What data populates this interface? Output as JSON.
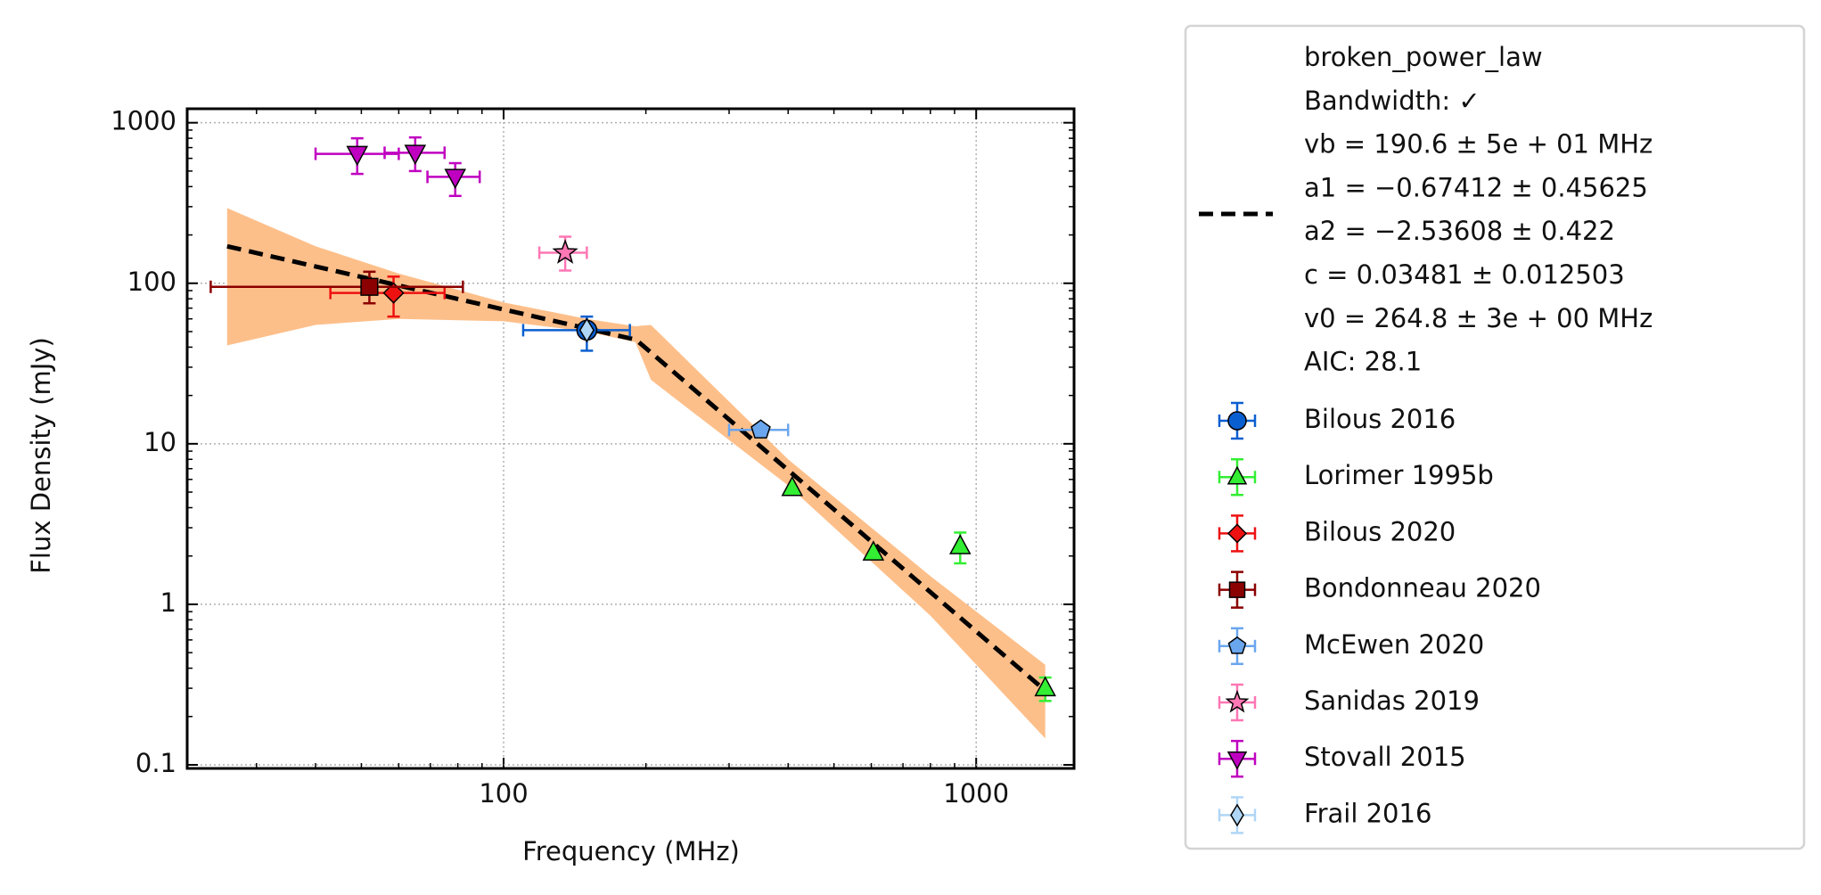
{
  "chart_data": {
    "type": "scatter",
    "xlabel": "Frequency (MHz)",
    "ylabel": "Flux Density (mJy)",
    "xscale": "log",
    "yscale": "log",
    "xlim": [
      21.4,
      1611
    ],
    "ylim": [
      0.095,
      1222
    ],
    "xticks": [
      100,
      1000
    ],
    "yticks": [
      0.1,
      1,
      10,
      100,
      1000
    ],
    "xminorticks": [
      30,
      40,
      50,
      60,
      70,
      80,
      90,
      200,
      300,
      400,
      500,
      600,
      700,
      800,
      900
    ],
    "yminorticks": [
      0.2,
      0.3,
      0.4,
      0.5,
      0.6,
      0.7,
      0.8,
      0.9,
      2,
      3,
      4,
      5,
      6,
      7,
      8,
      9,
      20,
      30,
      40,
      50,
      60,
      70,
      80,
      90,
      200,
      300,
      400,
      500,
      600,
      700,
      800,
      900
    ],
    "grid": true,
    "legend": "outside right",
    "fit": {
      "name": "broken_power_law",
      "legend_lines": [
        "broken_power_law",
        "Bandwidth: ✓",
        "vb = 190.6 ± 5e + 01 MHz",
        "a1 = −0.67412 ± 0.45625",
        "a2 = −2.53608 ± 0.422",
        "c = 0.03481 ± 0.012503",
        "v0 = 264.8 ± 3e + 00 MHz",
        "AIC: 28.1"
      ],
      "color": "#000000",
      "x": [
        26,
        190.6,
        1400
      ],
      "values": [
        170,
        44.5,
        0.29
      ]
    },
    "band": {
      "color": "#fdbf8a",
      "x": [
        26,
        40,
        60,
        100,
        150,
        190,
        205,
        400,
        800,
        1400
      ],
      "upper": [
        294,
        170,
        115,
        76,
        60,
        54,
        55,
        8,
        1.5,
        0.42
      ],
      "lower": [
        41,
        55,
        60,
        58,
        50,
        43,
        25,
        5.5,
        0.85,
        0.146
      ]
    },
    "series": [
      {
        "name": "Bilous 2016",
        "color": "#0a5fd0",
        "marker": "o",
        "x": [
          150
        ],
        "values": [
          51
        ],
        "x_lower": [
          110
        ],
        "x_upper": [
          185
        ],
        "y_lower": [
          38
        ],
        "y_upper": [
          62
        ]
      },
      {
        "name": "Lorimer 1995b",
        "color": "#33ee33",
        "marker": "^",
        "x": [
          408,
          606,
          925,
          1400
        ],
        "values": [
          5.3,
          2.1,
          2.3,
          0.3
        ],
        "x_lower": [
          null,
          null,
          null,
          null
        ],
        "x_upper": [
          null,
          null,
          null,
          null
        ],
        "y_lower": [
          null,
          null,
          1.8,
          0.25
        ],
        "y_upper": [
          null,
          null,
          2.8,
          0.35
        ]
      },
      {
        "name": "Bilous 2020",
        "color": "#ee1111",
        "marker": "D",
        "x": [
          58.5
        ],
        "values": [
          87
        ],
        "x_lower": [
          43
        ],
        "x_upper": [
          75
        ],
        "y_lower": [
          62
        ],
        "y_upper": [
          110
        ]
      },
      {
        "name": "Bondonneau 2020",
        "color": "#8b0000",
        "marker": "s",
        "x": [
          52
        ],
        "values": [
          95
        ],
        "x_lower": [
          24
        ],
        "x_upper": [
          82
        ],
        "y_lower": [
          75
        ],
        "y_upper": [
          118
        ]
      },
      {
        "name": "McEwen 2020",
        "color": "#6aa6ee",
        "marker": "p",
        "x": [
          350
        ],
        "values": [
          12.2
        ],
        "x_lower": [
          300
        ],
        "x_upper": [
          400
        ],
        "y_lower": [
          null
        ],
        "y_upper": [
          null
        ]
      },
      {
        "name": "Sanidas 2019",
        "color": "#ff77b4",
        "marker": "*",
        "x": [
          135
        ],
        "values": [
          155
        ],
        "x_lower": [
          119
        ],
        "x_upper": [
          150
        ],
        "y_lower": [
          120
        ],
        "y_upper": [
          195
        ]
      },
      {
        "name": "Stovall 2015",
        "color": "#c000c0",
        "marker": "v",
        "x": [
          49,
          65,
          79
        ],
        "values": [
          640,
          650,
          460
        ],
        "x_lower": [
          40,
          56,
          69
        ],
        "x_upper": [
          60,
          75,
          89
        ],
        "y_lower": [
          480,
          500,
          350
        ],
        "y_upper": [
          800,
          810,
          560
        ]
      },
      {
        "name": "Frail 2016",
        "color": "#b0d6f6",
        "marker": "d",
        "x": [
          150
        ],
        "values": [
          51
        ],
        "x_lower": [
          null
        ],
        "x_upper": [
          null
        ],
        "y_lower": [
          null
        ],
        "y_upper": [
          null
        ]
      }
    ]
  }
}
